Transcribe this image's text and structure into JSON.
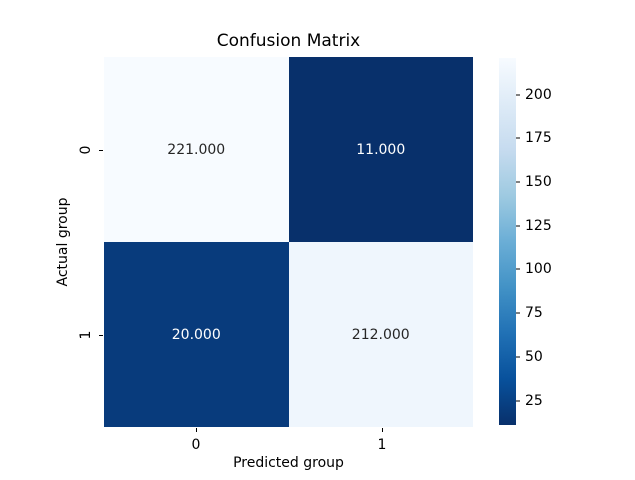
{
  "figure": {
    "background": "#ffffff"
  },
  "chart_data": {
    "type": "heatmap",
    "title": "Confusion Matrix",
    "xlabel": "Predicted group",
    "ylabel": "Actual group",
    "x_ticklabels": [
      "0",
      "1"
    ],
    "y_ticklabels": [
      "0",
      "1"
    ],
    "rows": [
      "Actual 0",
      "Actual 1"
    ],
    "columns": [
      "Predicted 0",
      "Predicted 1"
    ],
    "values": [
      [
        221,
        11
      ],
      [
        20,
        212
      ]
    ],
    "annotation_format": "3 decimal places",
    "vmin": 11,
    "vmax": 221,
    "colormap": "Blues_r",
    "colorbar_ticks": [
      200,
      175,
      150,
      125,
      100,
      75,
      50,
      25
    ],
    "legend_position": "right colorbar",
    "grid": false
  },
  "cells": [
    {
      "label": "221.000",
      "value": 221,
      "bg": "#f7fbff",
      "fg": "#262626"
    },
    {
      "label": "11.000",
      "value": 11,
      "bg": "#08306b",
      "fg": "#ffffff"
    },
    {
      "label": "20.000",
      "value": 20,
      "bg": "#083b7c",
      "fg": "#ffffff"
    },
    {
      "label": "212.000",
      "value": 212,
      "bg": "#eff6fd",
      "fg": "#262626"
    }
  ],
  "colorbar": {
    "gradient_stops_top_to_bottom": [
      "#f7fbff",
      "#deebf7",
      "#c6dbef",
      "#9ecae1",
      "#6baed6",
      "#4292c6",
      "#2171b5",
      "#08519c",
      "#08306b"
    ],
    "ticks": [
      {
        "label": "200",
        "pct": 10.0
      },
      {
        "label": "175",
        "pct": 21.9
      },
      {
        "label": "150",
        "pct": 33.81
      },
      {
        "label": "125",
        "pct": 45.71
      },
      {
        "label": "100",
        "pct": 57.62
      },
      {
        "label": "75",
        "pct": 69.52
      },
      {
        "label": "50",
        "pct": 81.43
      },
      {
        "label": "25",
        "pct": 93.33
      }
    ]
  }
}
